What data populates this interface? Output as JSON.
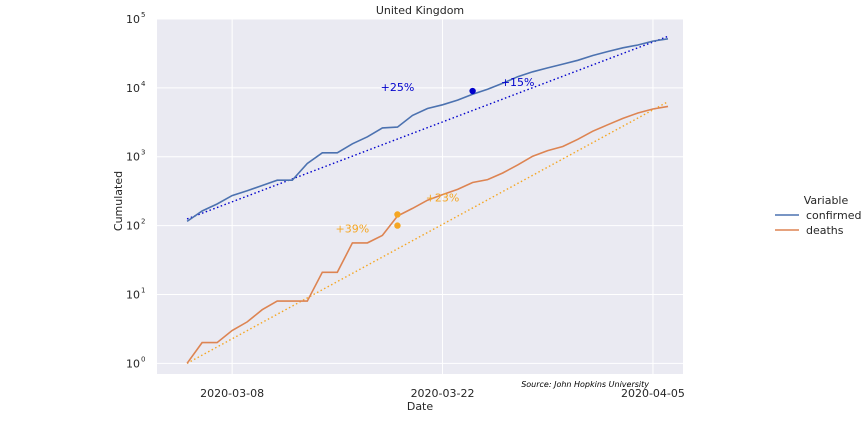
{
  "chart_data": {
    "type": "line",
    "title": "United Kingdom",
    "xlabel": "Date",
    "ylabel": "Cumulated",
    "yscale": "log",
    "ylim": [
      0.7,
      100000
    ],
    "xlim": [
      "2020-03-03",
      "2020-04-07"
    ],
    "x_ticks": [
      "2020-03-08",
      "2020-03-22",
      "2020-04-05"
    ],
    "y_ticks": [
      {
        "value": 1,
        "base": "10",
        "exp": "0"
      },
      {
        "value": 10,
        "base": "10",
        "exp": "1"
      },
      {
        "value": 100,
        "base": "10",
        "exp": "2"
      },
      {
        "value": 1000,
        "base": "10",
        "exp": "3"
      },
      {
        "value": 10000,
        "base": "10",
        "exp": "4"
      },
      {
        "value": 100000,
        "base": "10",
        "exp": "5"
      }
    ],
    "grid": true,
    "legend": {
      "title": "Variable",
      "placement": "right"
    },
    "series": [
      {
        "name": "confirmed",
        "color": "#4c72b0",
        "trend_color": "#0000cc",
        "points": [
          [
            "2020-03-05",
            115
          ],
          [
            "2020-03-06",
            163
          ],
          [
            "2020-03-07",
            206
          ],
          [
            "2020-03-08",
            273
          ],
          [
            "2020-03-09",
            321
          ],
          [
            "2020-03-10",
            382
          ],
          [
            "2020-03-11",
            456
          ],
          [
            "2020-03-12",
            456
          ],
          [
            "2020-03-13",
            798
          ],
          [
            "2020-03-14",
            1140
          ],
          [
            "2020-03-15",
            1140
          ],
          [
            "2020-03-16",
            1543
          ],
          [
            "2020-03-17",
            1950
          ],
          [
            "2020-03-18",
            2626
          ],
          [
            "2020-03-19",
            2689
          ],
          [
            "2020-03-20",
            3983
          ],
          [
            "2020-03-21",
            5018
          ],
          [
            "2020-03-22",
            5683
          ],
          [
            "2020-03-23",
            6650
          ],
          [
            "2020-03-24",
            8077
          ],
          [
            "2020-03-25",
            9529
          ],
          [
            "2020-03-26",
            11658
          ],
          [
            "2020-03-27",
            14543
          ],
          [
            "2020-03-28",
            17089
          ],
          [
            "2020-03-29",
            19522
          ],
          [
            "2020-03-30",
            22141
          ],
          [
            "2020-03-31",
            25150
          ],
          [
            "2020-04-01",
            29474
          ],
          [
            "2020-04-02",
            33718
          ],
          [
            "2020-04-03",
            38168
          ],
          [
            "2020-04-04",
            41903
          ],
          [
            "2020-04-05",
            47806
          ],
          [
            "2020-04-06",
            51608
          ]
        ],
        "trend": [
          [
            "2020-03-05",
            125
          ],
          [
            "2020-04-06",
            56000
          ]
        ],
        "markers": [
          [
            "2020-03-24",
            9000
          ]
        ],
        "annotations": [
          {
            "text": "+25%",
            "x": "2020-03-19",
            "y": 9000
          },
          {
            "text": "+15%",
            "x": "2020-03-27",
            "y": 10600
          }
        ]
      },
      {
        "name": "deaths",
        "color": "#dd8452",
        "trend_color": "#f5a623",
        "points": [
          [
            "2020-03-05",
            1
          ],
          [
            "2020-03-06",
            2
          ],
          [
            "2020-03-07",
            2
          ],
          [
            "2020-03-08",
            3
          ],
          [
            "2020-03-09",
            4
          ],
          [
            "2020-03-10",
            6
          ],
          [
            "2020-03-11",
            8
          ],
          [
            "2020-03-12",
            8
          ],
          [
            "2020-03-13",
            8
          ],
          [
            "2020-03-14",
            21
          ],
          [
            "2020-03-15",
            21
          ],
          [
            "2020-03-16",
            56
          ],
          [
            "2020-03-17",
            56
          ],
          [
            "2020-03-18",
            72
          ],
          [
            "2020-03-19",
            138
          ],
          [
            "2020-03-20",
            178
          ],
          [
            "2020-03-21",
            234
          ],
          [
            "2020-03-22",
            282
          ],
          [
            "2020-03-23",
            336
          ],
          [
            "2020-03-24",
            423
          ],
          [
            "2020-03-25",
            466
          ],
          [
            "2020-03-26",
            580
          ],
          [
            "2020-03-27",
            761
          ],
          [
            "2020-03-28",
            1019
          ],
          [
            "2020-03-29",
            1228
          ],
          [
            "2020-03-30",
            1408
          ],
          [
            "2020-03-31",
            1789
          ],
          [
            "2020-04-01",
            2352
          ],
          [
            "2020-04-02",
            2921
          ],
          [
            "2020-04-03",
            3605
          ],
          [
            "2020-04-04",
            4313
          ],
          [
            "2020-04-05",
            4934
          ],
          [
            "2020-04-06",
            5373
          ]
        ],
        "trend": [
          [
            "2020-03-05",
            1
          ],
          [
            "2020-04-06",
            6300
          ]
        ],
        "markers": [
          [
            "2020-03-19",
            145
          ],
          [
            "2020-03-19",
            100
          ]
        ],
        "annotations": [
          {
            "text": "+39%",
            "x": "2020-03-16",
            "y": 80
          },
          {
            "text": "+23%",
            "x": "2020-03-22",
            "y": 225
          }
        ]
      }
    ],
    "source": "Source: John Hopkins University"
  }
}
